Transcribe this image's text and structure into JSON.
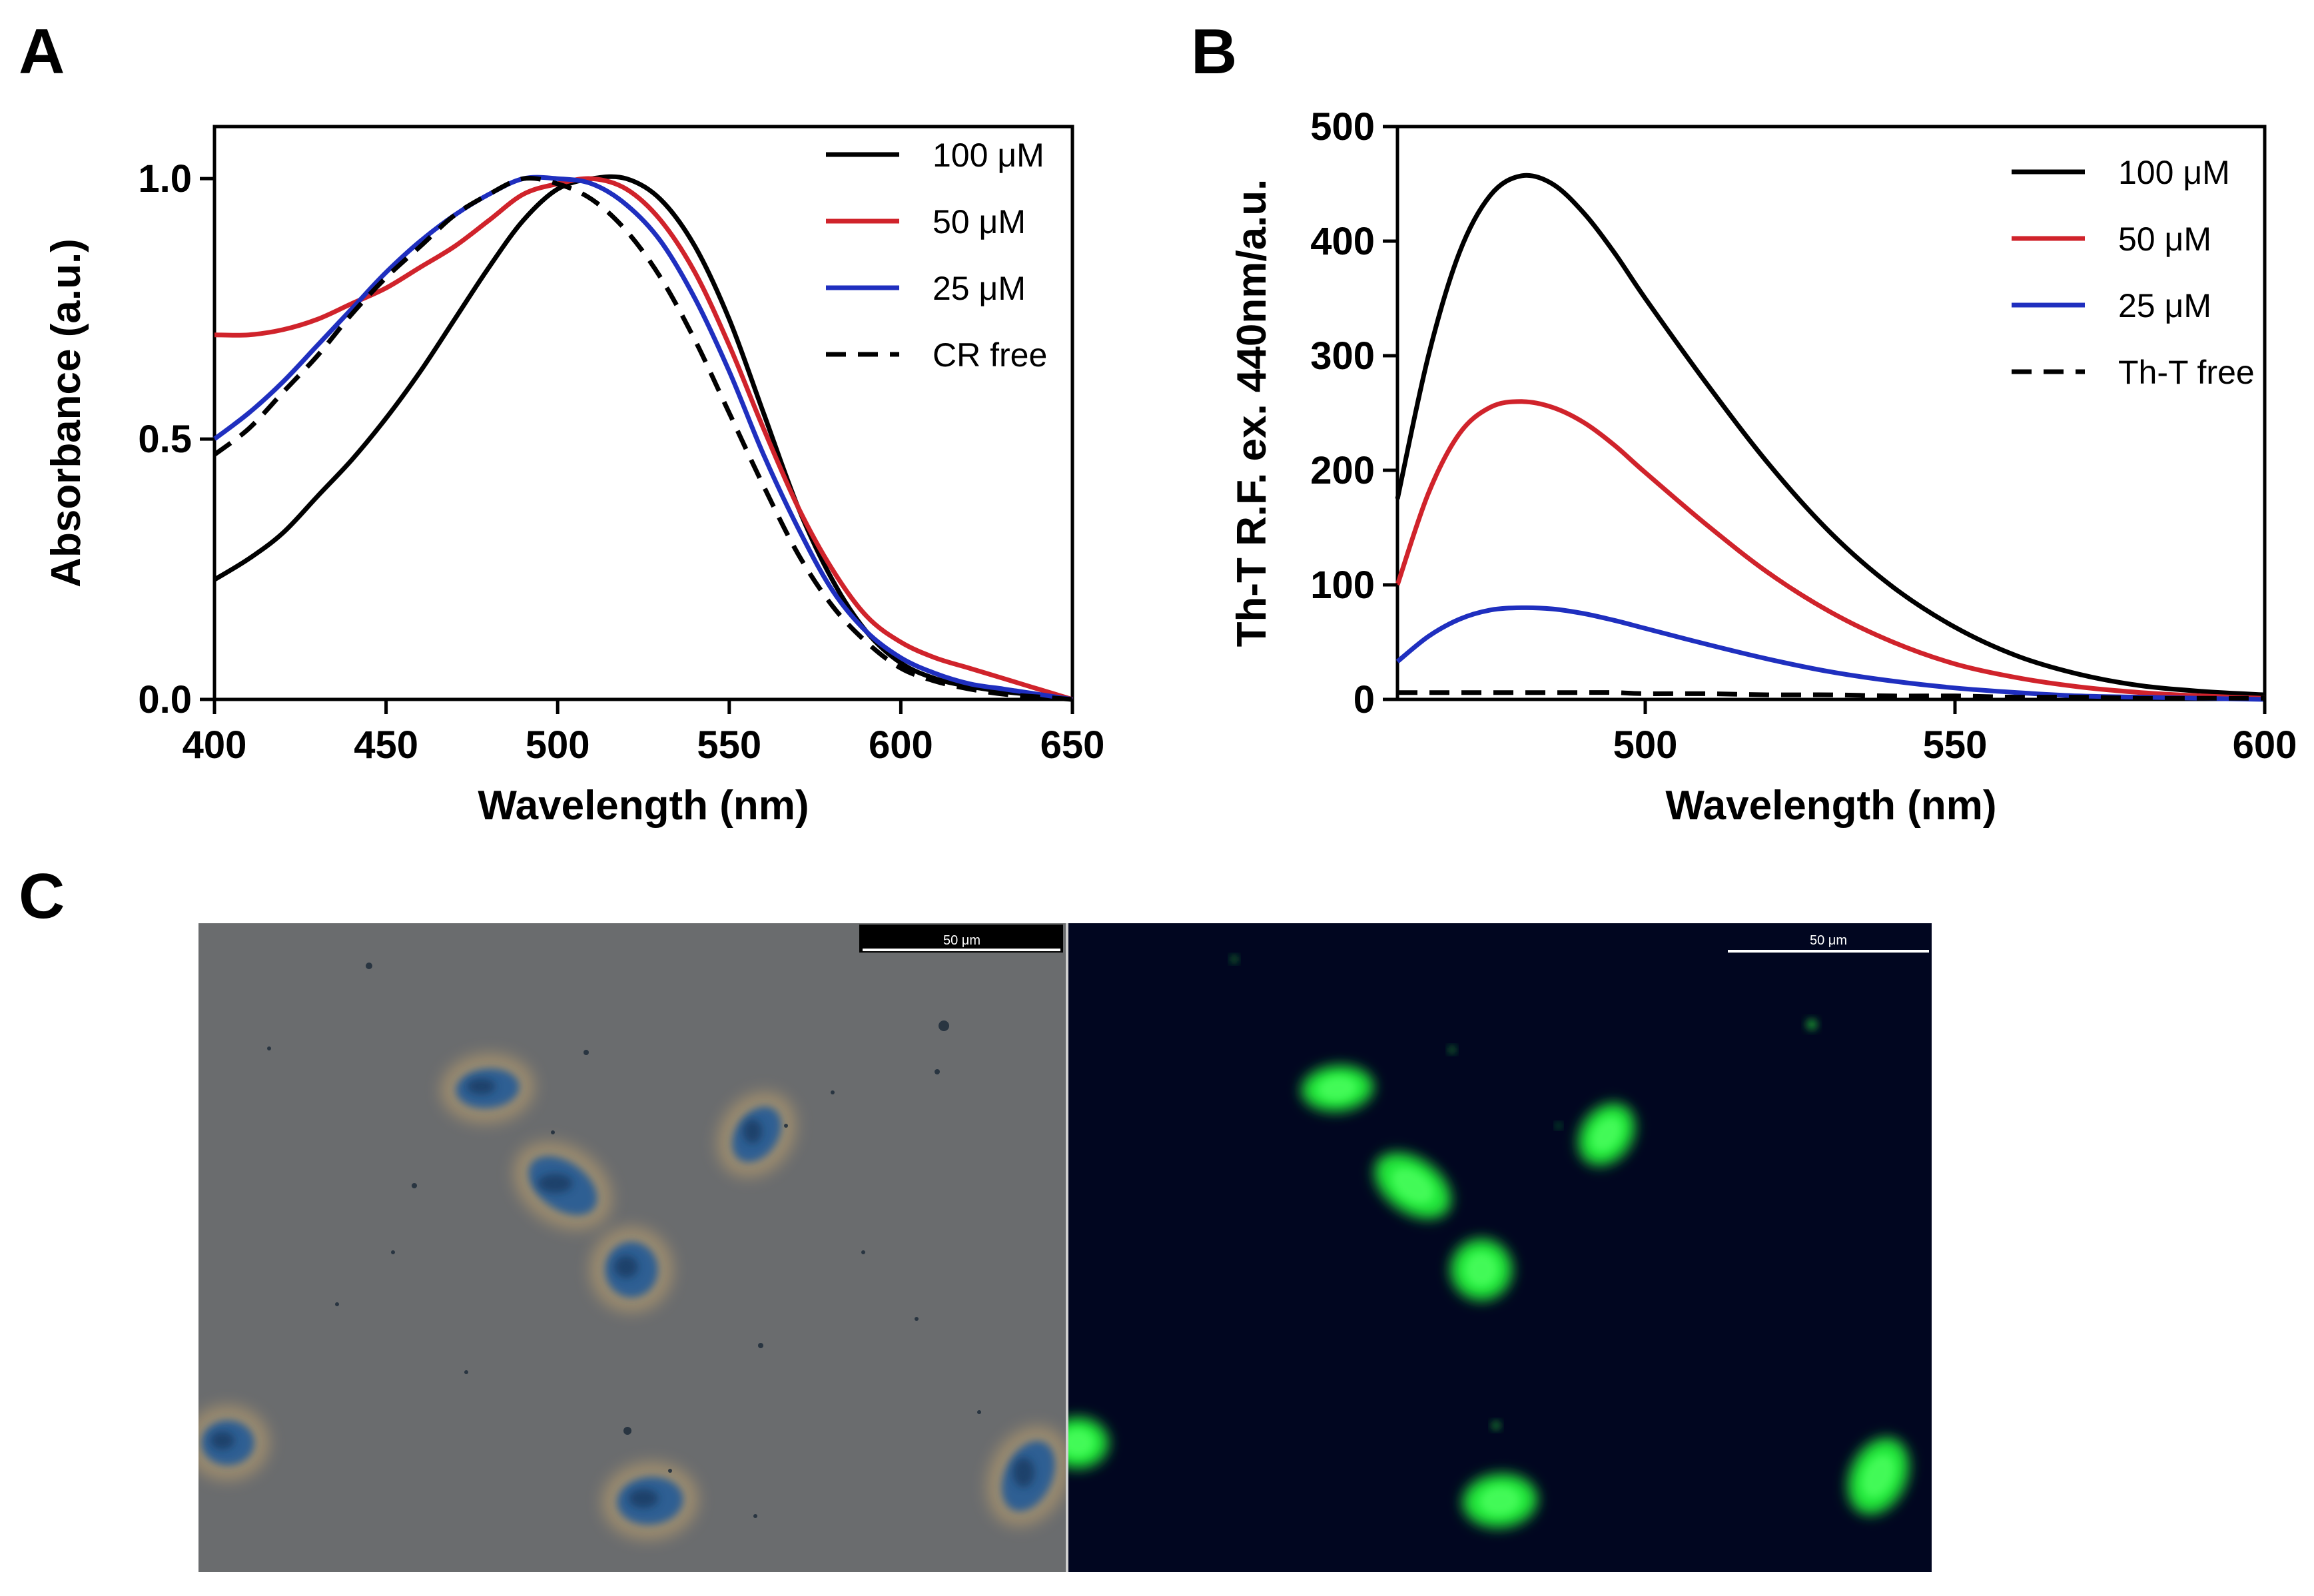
{
  "panels": {
    "A": {
      "letter": "A"
    },
    "B": {
      "letter": "B"
    },
    "C": {
      "letter": "C"
    }
  },
  "chart_data": [
    {
      "type": "line",
      "panel": "A",
      "xlabel": "Wavelength (nm)",
      "ylabel": "Absorbance (a.u.)",
      "xlim": [
        400,
        650
      ],
      "ylim": [
        0,
        1.1
      ],
      "xticks": [
        400,
        450,
        500,
        550,
        600,
        650
      ],
      "yticks": [
        0.0,
        0.5,
        1.0
      ],
      "xtick_labels": [
        "400",
        "450",
        "500",
        "550",
        "600",
        "650"
      ],
      "ytick_labels": [
        "0.0",
        "0.5",
        "1.0"
      ],
      "legend": "top-right",
      "grid": false,
      "x": [
        400,
        410,
        420,
        430,
        440,
        450,
        460,
        470,
        480,
        490,
        500,
        510,
        520,
        530,
        540,
        550,
        560,
        570,
        580,
        590,
        600,
        610,
        620,
        630,
        640,
        650
      ],
      "series": [
        {
          "name": "100 μM",
          "color": "#000000",
          "dash": "solid",
          "values": [
            0.23,
            0.27,
            0.32,
            0.39,
            0.46,
            0.54,
            0.63,
            0.73,
            0.83,
            0.92,
            0.98,
            1.0,
            1.0,
            0.96,
            0.87,
            0.73,
            0.55,
            0.37,
            0.23,
            0.13,
            0.07,
            0.04,
            0.025,
            0.015,
            0.008,
            0.0
          ]
        },
        {
          "name": "50 μM",
          "color": "#d0232b",
          "dash": "solid",
          "values": [
            0.7,
            0.7,
            0.71,
            0.73,
            0.76,
            0.79,
            0.83,
            0.87,
            0.92,
            0.97,
            0.99,
            1.0,
            0.98,
            0.92,
            0.82,
            0.68,
            0.52,
            0.37,
            0.25,
            0.16,
            0.11,
            0.08,
            0.06,
            0.04,
            0.02,
            0.0
          ]
        },
        {
          "name": "25 μM",
          "color": "#1f2fbf",
          "dash": "solid",
          "values": [
            0.5,
            0.55,
            0.61,
            0.68,
            0.75,
            0.82,
            0.88,
            0.93,
            0.97,
            1.0,
            1.0,
            0.99,
            0.95,
            0.88,
            0.77,
            0.63,
            0.47,
            0.33,
            0.21,
            0.13,
            0.08,
            0.05,
            0.03,
            0.02,
            0.01,
            0.0
          ]
        },
        {
          "name": "CR free",
          "color": "#000000",
          "dash": "dashed",
          "values": [
            0.47,
            0.52,
            0.59,
            0.66,
            0.74,
            0.81,
            0.87,
            0.93,
            0.97,
            1.0,
            0.99,
            0.96,
            0.9,
            0.81,
            0.69,
            0.55,
            0.41,
            0.28,
            0.18,
            0.11,
            0.06,
            0.035,
            0.02,
            0.01,
            0.005,
            0.0
          ]
        }
      ]
    },
    {
      "type": "line",
      "panel": "B",
      "xlabel": "Wavelength (nm)",
      "ylabel": "Th-T R.F. ex. 440nm/a.u.",
      "xlim": [
        460,
        600
      ],
      "ylim": [
        0,
        500
      ],
      "xticks": [
        500,
        550,
        600
      ],
      "yticks": [
        0,
        100,
        200,
        300,
        400,
        500
      ],
      "xtick_labels": [
        "500",
        "550",
        "600"
      ],
      "ytick_labels": [
        "0",
        "100",
        "200",
        "300",
        "400",
        "500"
      ],
      "legend": "top-right",
      "grid": false,
      "x": [
        460,
        465,
        470,
        475,
        480,
        485,
        490,
        495,
        500,
        510,
        520,
        530,
        540,
        550,
        560,
        570,
        580,
        590,
        600
      ],
      "series": [
        {
          "name": "100 μM",
          "color": "#000000",
          "dash": "solid",
          "values": [
            175,
            300,
            390,
            440,
            457,
            450,
            425,
            390,
            350,
            275,
            205,
            145,
            98,
            63,
            38,
            22,
            12,
            7,
            4
          ]
        },
        {
          "name": "50 μM",
          "color": "#d0232b",
          "dash": "solid",
          "values": [
            100,
            180,
            232,
            255,
            260,
            255,
            242,
            222,
            198,
            152,
            110,
            76,
            50,
            31,
            19,
            11,
            6,
            3,
            1
          ]
        },
        {
          "name": "25 μM",
          "color": "#1f2fbf",
          "dash": "solid",
          "values": [
            33,
            55,
            70,
            78,
            80,
            79,
            75,
            69,
            62,
            48,
            35,
            24,
            16,
            10,
            6,
            3,
            2,
            1,
            0
          ]
        },
        {
          "name": "Th-T free",
          "color": "#000000",
          "dash": "dashed",
          "values": [
            6,
            6,
            6,
            6,
            6,
            6,
            6,
            6,
            5,
            5,
            4,
            4,
            3,
            3,
            2,
            2,
            1,
            1,
            1
          ]
        }
      ]
    }
  ],
  "micrographs": {
    "left": {
      "scale_bar_label": "50 μm",
      "background_color": "#67696a",
      "stain_color": "#2e5f93"
    },
    "right": {
      "scale_bar_label": "50 μm",
      "background_color": "#010620",
      "stain_color": "#22e83a"
    }
  }
}
